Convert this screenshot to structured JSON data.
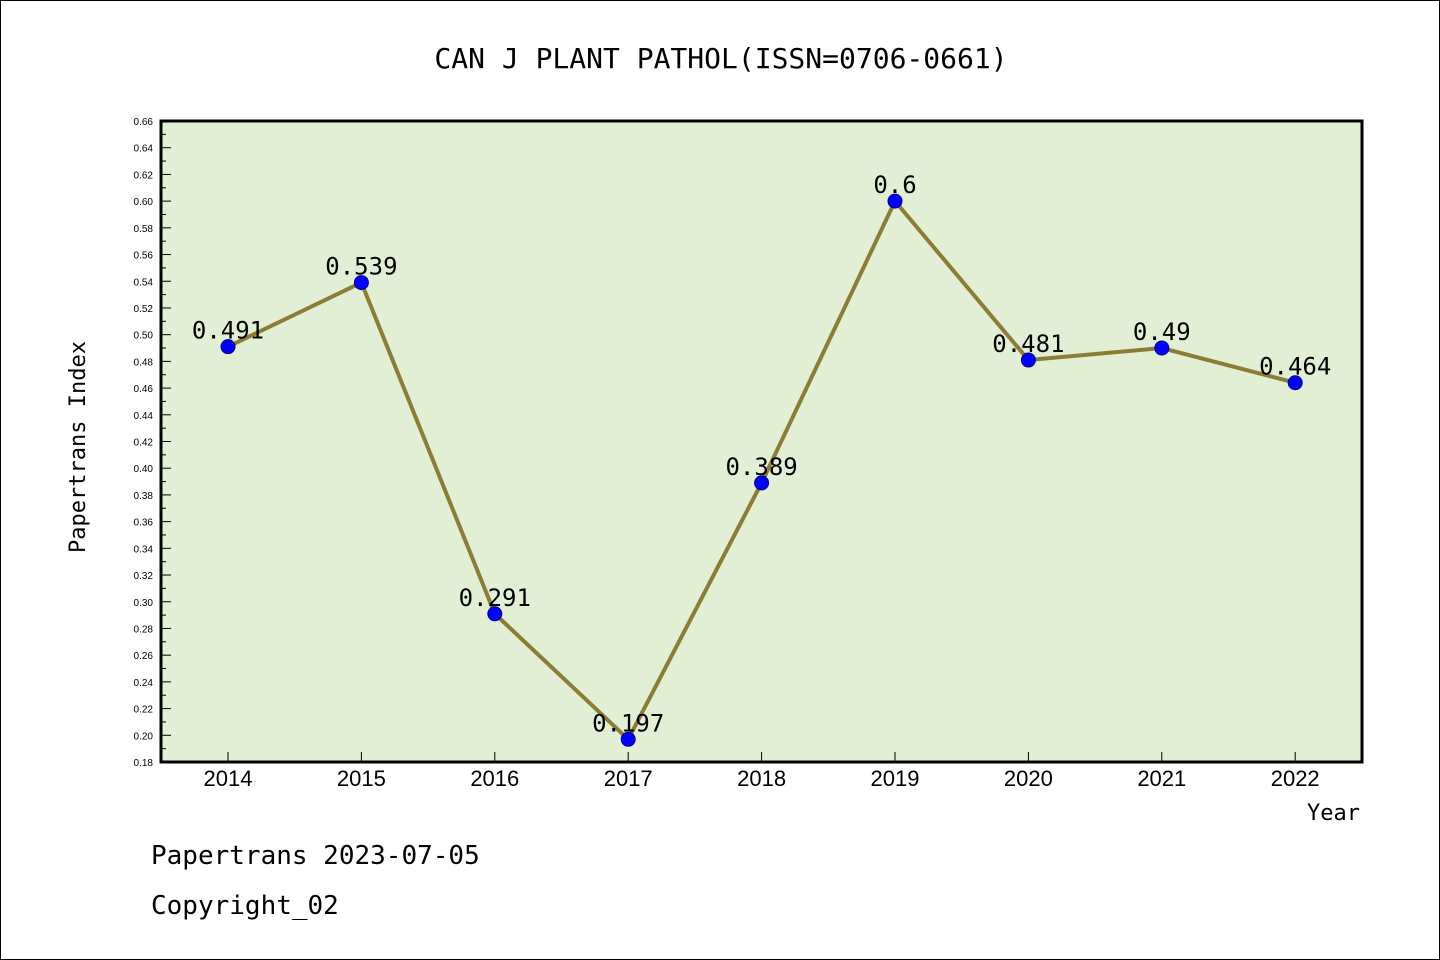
{
  "chart_data": {
    "type": "line",
    "title": "CAN J PLANT PATHOL(ISSN=0706-0661)",
    "xlabel": "Year",
    "ylabel": "Papertrans Index",
    "x": [
      "2014",
      "2015",
      "2016",
      "2017",
      "2018",
      "2019",
      "2020",
      "2021",
      "2022"
    ],
    "values": [
      0.491,
      0.539,
      0.291,
      0.197,
      0.389,
      0.6,
      0.481,
      0.49,
      0.464
    ],
    "data_labels": [
      "0.491",
      "0.539",
      "0.291",
      "0.197",
      "0.389",
      "0.6",
      "0.481",
      "0.49",
      "0.464"
    ],
    "ylim": [
      0.18,
      0.66
    ],
    "yticks": [
      "0.18",
      "0.20",
      "0.22",
      "0.24",
      "0.26",
      "0.28",
      "0.30",
      "0.32",
      "0.34",
      "0.36",
      "0.38",
      "0.40",
      "0.42",
      "0.44",
      "0.46",
      "0.48",
      "0.50",
      "0.52",
      "0.54",
      "0.56",
      "0.58",
      "0.60",
      "0.62",
      "0.64",
      "0.66"
    ],
    "grid": false,
    "colors": {
      "plot_background": "#e2efd5",
      "line": "#8b7d35",
      "marker": "#0000ff"
    }
  },
  "footer": {
    "source": "Papertrans 2023-07-05",
    "copyright": "Copyright_02"
  }
}
